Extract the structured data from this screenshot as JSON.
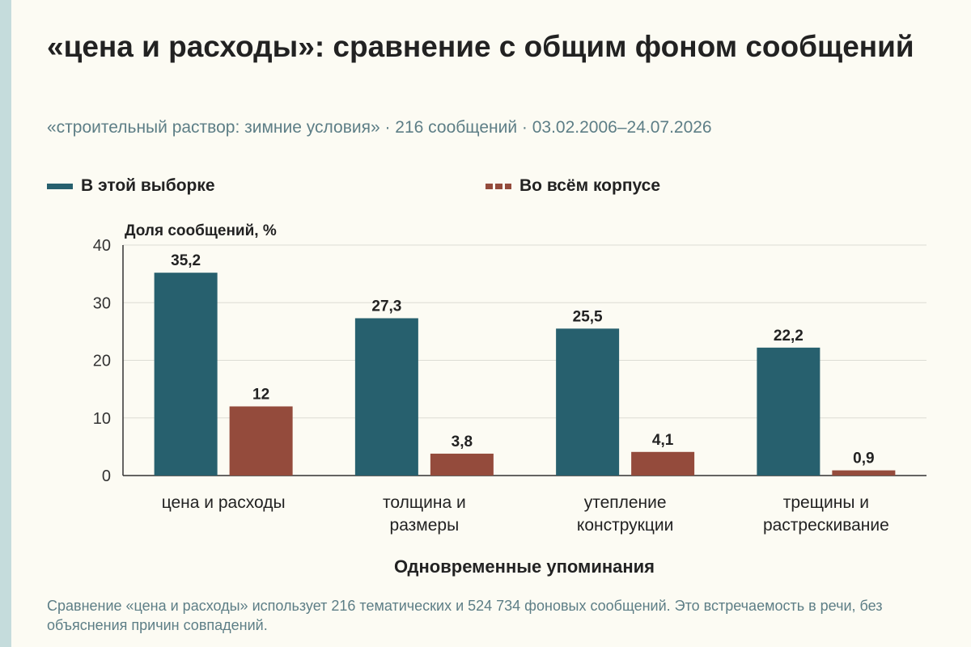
{
  "title": "«цена и расходы»: сравнение с общим фоном сообщений",
  "subtitle": "«строительный раствор: зимние условия» · 216 сообщений · 03.02.2006–24.07.2026",
  "footnote": "Сравнение «цена и расходы» использует 216 тематических и 524 734 фоновых сообщений. Это встречаемость в речи, без объяснения причин совпадений.",
  "colors": {
    "sample": "#27606e",
    "corpus": "#944b3c",
    "grid": "#dcdcd4",
    "axis": "#333333"
  },
  "chart_data": {
    "type": "bar",
    "ylabel": "Доля сообщений, %",
    "xlabel": "Одновременные упоминания",
    "ylim": [
      0,
      40
    ],
    "yticks": [
      0,
      10,
      20,
      30,
      40
    ],
    "grid": true,
    "legend_position": "top",
    "categories": [
      [
        "цена и расходы"
      ],
      [
        "толщина и",
        "размеры"
      ],
      [
        "утепление",
        "конструкции"
      ],
      [
        "трещины и",
        "растрескивание"
      ]
    ],
    "series": [
      {
        "name": "В этой выборке",
        "values": [
          35.2,
          27.3,
          25.5,
          22.2
        ],
        "labels": [
          "35,2",
          "27,3",
          "25,5",
          "22,2"
        ]
      },
      {
        "name": "Во всём корпусе",
        "values": [
          12,
          3.8,
          4.1,
          0.9
        ],
        "labels": [
          "12",
          "3,8",
          "4,1",
          "0,9"
        ]
      }
    ]
  }
}
